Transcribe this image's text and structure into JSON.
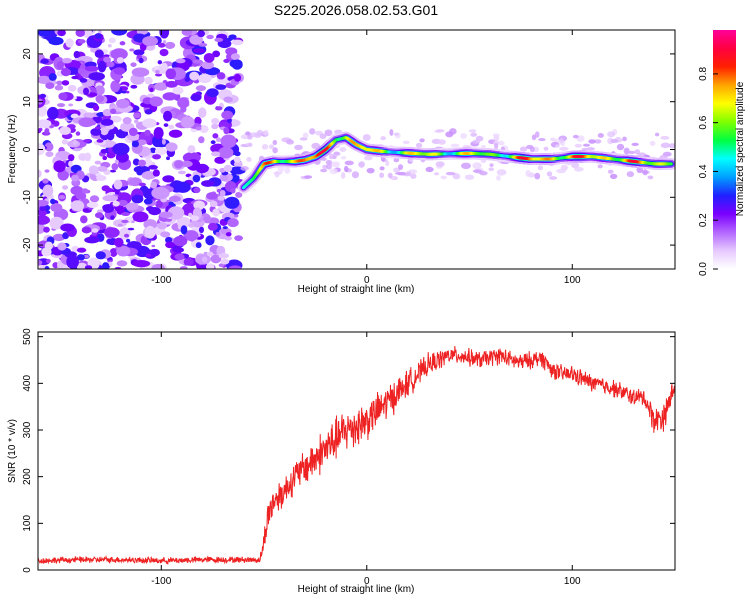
{
  "figure": {
    "title": "S225.2026.058.02.53.G01"
  },
  "chart_data": [
    {
      "type": "heatmap",
      "xlabel": "Height of straight line (km)",
      "ylabel": "Frequency (Hz)",
      "xlim": [
        -160,
        150
      ],
      "ylim": [
        -25,
        25
      ],
      "xticks": [
        -100,
        0,
        100
      ],
      "xtick_labels": [
        "-100",
        "0",
        "100"
      ],
      "yticks": [
        -20,
        -10,
        0,
        10,
        20
      ],
      "ytick_labels": [
        "-20",
        "-10",
        "0",
        "10",
        "20"
      ],
      "noise_region": {
        "x_start": -160,
        "x_end": -62
      },
      "ridge": {
        "x": [
          -60,
          -55,
          -50,
          -45,
          -40,
          -35,
          -30,
          -25,
          -20,
          -15,
          -10,
          -5,
          0,
          10,
          30,
          50,
          60,
          70,
          80,
          90,
          100,
          110,
          120,
          130,
          140,
          148
        ],
        "freq": [
          -8,
          -6,
          -3,
          -2.5,
          -2.5,
          -2.5,
          -2.2,
          -1.5,
          0,
          2,
          2.5,
          1,
          0,
          -0.5,
          -1,
          -0.8,
          -1,
          -1.5,
          -2,
          -2,
          -1.5,
          -1.5,
          -2,
          -2.5,
          -3,
          -3
        ],
        "amp": [
          0.5,
          0.65,
          0.75,
          0.85,
          0.9,
          0.8,
          0.9,
          0.85,
          0.9,
          0.95,
          0.85,
          0.75,
          0.8,
          0.7,
          0.72,
          0.7,
          0.65,
          0.8,
          0.85,
          0.9,
          0.8,
          0.85,
          0.85,
          0.8,
          0.8,
          0.8
        ]
      },
      "colorbar": {
        "label": "Normalized spectral amplitude",
        "ticks": [
          "0.0",
          "0.2",
          "0.4",
          "0.6",
          "0.8"
        ],
        "tick_values": [
          0.0,
          0.2,
          0.4,
          0.6,
          0.8
        ],
        "range": [
          0.0,
          0.98
        ],
        "colors": [
          "#ffffff",
          "#e6c9ff",
          "#b366ff",
          "#7a00ff",
          "#1f20ff",
          "#00a0ff",
          "#00ffff",
          "#00ff40",
          "#7fff00",
          "#ffff00",
          "#ffa500",
          "#ff2000",
          "#ff0040",
          "#ff0099"
        ]
      }
    },
    {
      "type": "line",
      "xlabel": "Height of straight line (km)",
      "ylabel": "SNR (10 * v/v)",
      "xlim": [
        -160,
        150
      ],
      "ylim": [
        0,
        510
      ],
      "xticks": [
        -100,
        0,
        100
      ],
      "xtick_labels": [
        "-100",
        "0",
        "100"
      ],
      "yticks": [
        0,
        100,
        200,
        300,
        400,
        500
      ],
      "ytick_labels": [
        "0",
        "100",
        "200",
        "300",
        "400",
        "500"
      ],
      "line_color": "#ee2222",
      "series": [
        {
          "name": "SNR",
          "x": [
            -160,
            -140,
            -120,
            -100,
            -80,
            -60,
            -52,
            -50,
            -48,
            -45,
            -40,
            -35,
            -30,
            -25,
            -20,
            -15,
            -10,
            -5,
            0,
            5,
            10,
            15,
            20,
            25,
            30,
            35,
            40,
            45,
            50,
            55,
            60,
            65,
            70,
            75,
            80,
            85,
            90,
            95,
            100,
            105,
            110,
            115,
            120,
            125,
            130,
            135,
            140,
            145,
            150
          ],
          "y": [
            20,
            22,
            22,
            20,
            22,
            22,
            22,
            60,
            120,
            150,
            170,
            200,
            220,
            240,
            260,
            280,
            300,
            310,
            320,
            340,
            360,
            380,
            400,
            420,
            440,
            450,
            460,
            460,
            455,
            450,
            455,
            460,
            450,
            445,
            450,
            455,
            430,
            420,
            420,
            410,
            400,
            395,
            390,
            380,
            370,
            370,
            320,
            330,
            400
          ],
          "noise_amplitude": [
            8,
            8,
            8,
            8,
            8,
            8,
            8,
            30,
            40,
            40,
            40,
            40,
            45,
            50,
            55,
            55,
            55,
            55,
            50,
            45,
            45,
            40,
            35,
            30,
            28,
            25,
            22,
            22,
            22,
            22,
            22,
            22,
            22,
            22,
            22,
            22,
            22,
            22,
            22,
            22,
            22,
            22,
            22,
            22,
            22,
            22,
            35,
            35,
            25
          ]
        }
      ]
    }
  ]
}
